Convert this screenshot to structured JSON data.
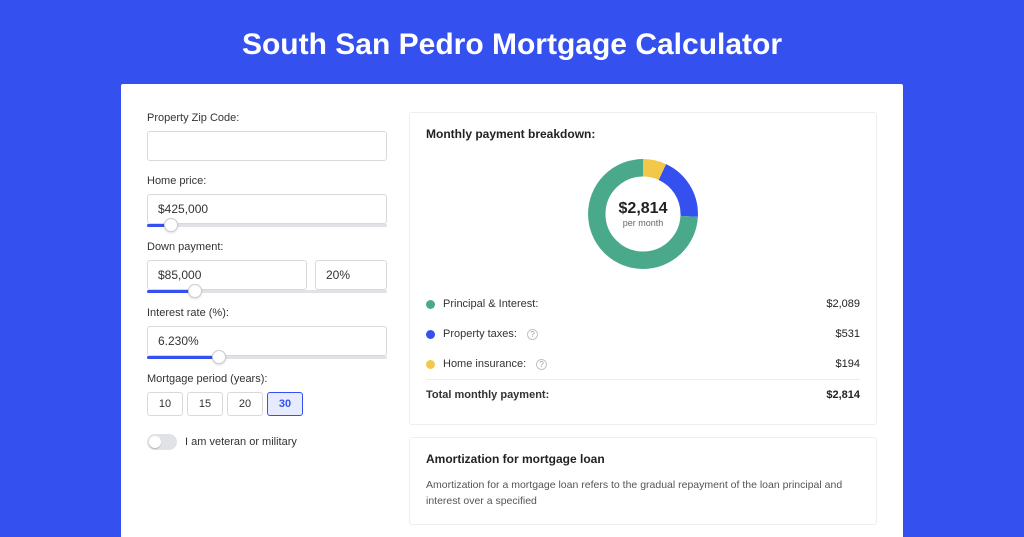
{
  "title": "South San Pedro Mortgage Calculator",
  "colors": {
    "brand": "#3451ef",
    "bg": "#3451ef",
    "card_bg": "#ffffff",
    "border": "#d7d9dd",
    "muted_track": "#e0e2e6",
    "text": "#333333"
  },
  "inputs": {
    "zip": {
      "label": "Property Zip Code:",
      "value": ""
    },
    "home_price": {
      "label": "Home price:",
      "value": "$425,000",
      "slider_pct": 10
    },
    "down_payment": {
      "label": "Down payment:",
      "value": "$85,000",
      "pct_value": "20%",
      "slider_pct": 20
    },
    "interest_rate": {
      "label": "Interest rate (%):",
      "value": "6.230%",
      "slider_pct": 30
    },
    "period": {
      "label": "Mortgage period (years):",
      "options": [
        "10",
        "15",
        "20",
        "30"
      ],
      "selected": "30"
    },
    "veteran": {
      "label": "I am veteran or military",
      "on": false
    }
  },
  "breakdown": {
    "title": "Monthly payment breakdown:",
    "amount": "$2,814",
    "sub": "per month",
    "donut": {
      "size": 122,
      "ring_width": 16,
      "bg_color": "#ffffff",
      "segments": [
        {
          "name": "principal_interest",
          "fraction": 0.742,
          "color": "#4aa98b"
        },
        {
          "name": "property_taxes",
          "fraction": 0.189,
          "color": "#3451ef"
        },
        {
          "name": "home_insurance",
          "fraction": 0.069,
          "color": "#f2c84b"
        }
      ]
    },
    "items": [
      {
        "label": "Principal & Interest:",
        "value": "$2,089",
        "color": "#4aa98b",
        "help": false
      },
      {
        "label": "Property taxes:",
        "value": "$531",
        "color": "#3451ef",
        "help": true
      },
      {
        "label": "Home insurance:",
        "value": "$194",
        "color": "#f2c84b",
        "help": true
      }
    ],
    "total": {
      "label": "Total monthly payment:",
      "value": "$2,814"
    }
  },
  "amortization": {
    "title": "Amortization for mortgage loan",
    "body": "Amortization for a mortgage loan refers to the gradual repayment of the loan principal and interest over a specified"
  }
}
